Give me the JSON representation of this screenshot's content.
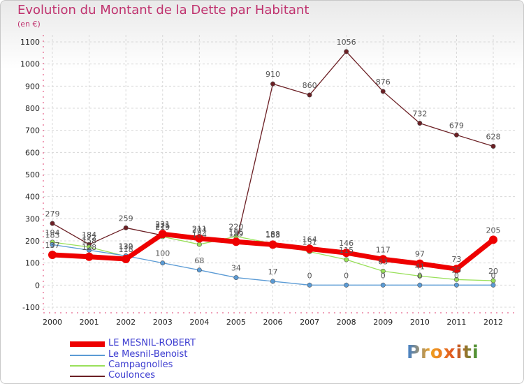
{
  "header": {
    "title": "Evolution du Montant de la Dette par Habitant",
    "subtitle": "(en €)"
  },
  "logo": {
    "text": "Proxiti"
  },
  "chart_data": {
    "type": "line",
    "title": "Evolution du Montant de la Dette par Habitant",
    "ylabel": "(en €)",
    "xlabel": "",
    "ylim": [
      -100,
      1100
    ],
    "yticks": [
      -100,
      0,
      100,
      200,
      300,
      400,
      500,
      600,
      700,
      800,
      900,
      1000,
      1100
    ],
    "categories": [
      "2000",
      "2001",
      "2002",
      "2003",
      "2004",
      "2005",
      "2006",
      "2007",
      "2008",
      "2009",
      "2010",
      "2011",
      "2012"
    ],
    "legend_position": "bottom-left",
    "series": [
      {
        "name": "LE MESNIL-ROBERT",
        "color": "#ee0000",
        "values": [
          137,
          128,
          118,
          231,
          211,
          196,
          183,
          164,
          146,
          117,
          97,
          73,
          205
        ]
      },
      {
        "name": "Le Mesnil-Benoist",
        "color": "#5b9bd5",
        "values": [
          183,
          158,
          132,
          100,
          68,
          34,
          17,
          0,
          0,
          0,
          0,
          0,
          0
        ]
      },
      {
        "name": "Campagnolles",
        "color": "#99e05a",
        "values": [
          194,
          172,
          130,
          219,
          184,
          220,
          188,
          151,
          115,
          63,
          41,
          25,
          20
        ]
      },
      {
        "name": "Coulonces",
        "color": "#6b1f24",
        "values": [
          279,
          184,
          259,
          225,
          204,
          189,
          910,
          860,
          1056,
          876,
          732,
          679,
          628
        ]
      }
    ]
  }
}
